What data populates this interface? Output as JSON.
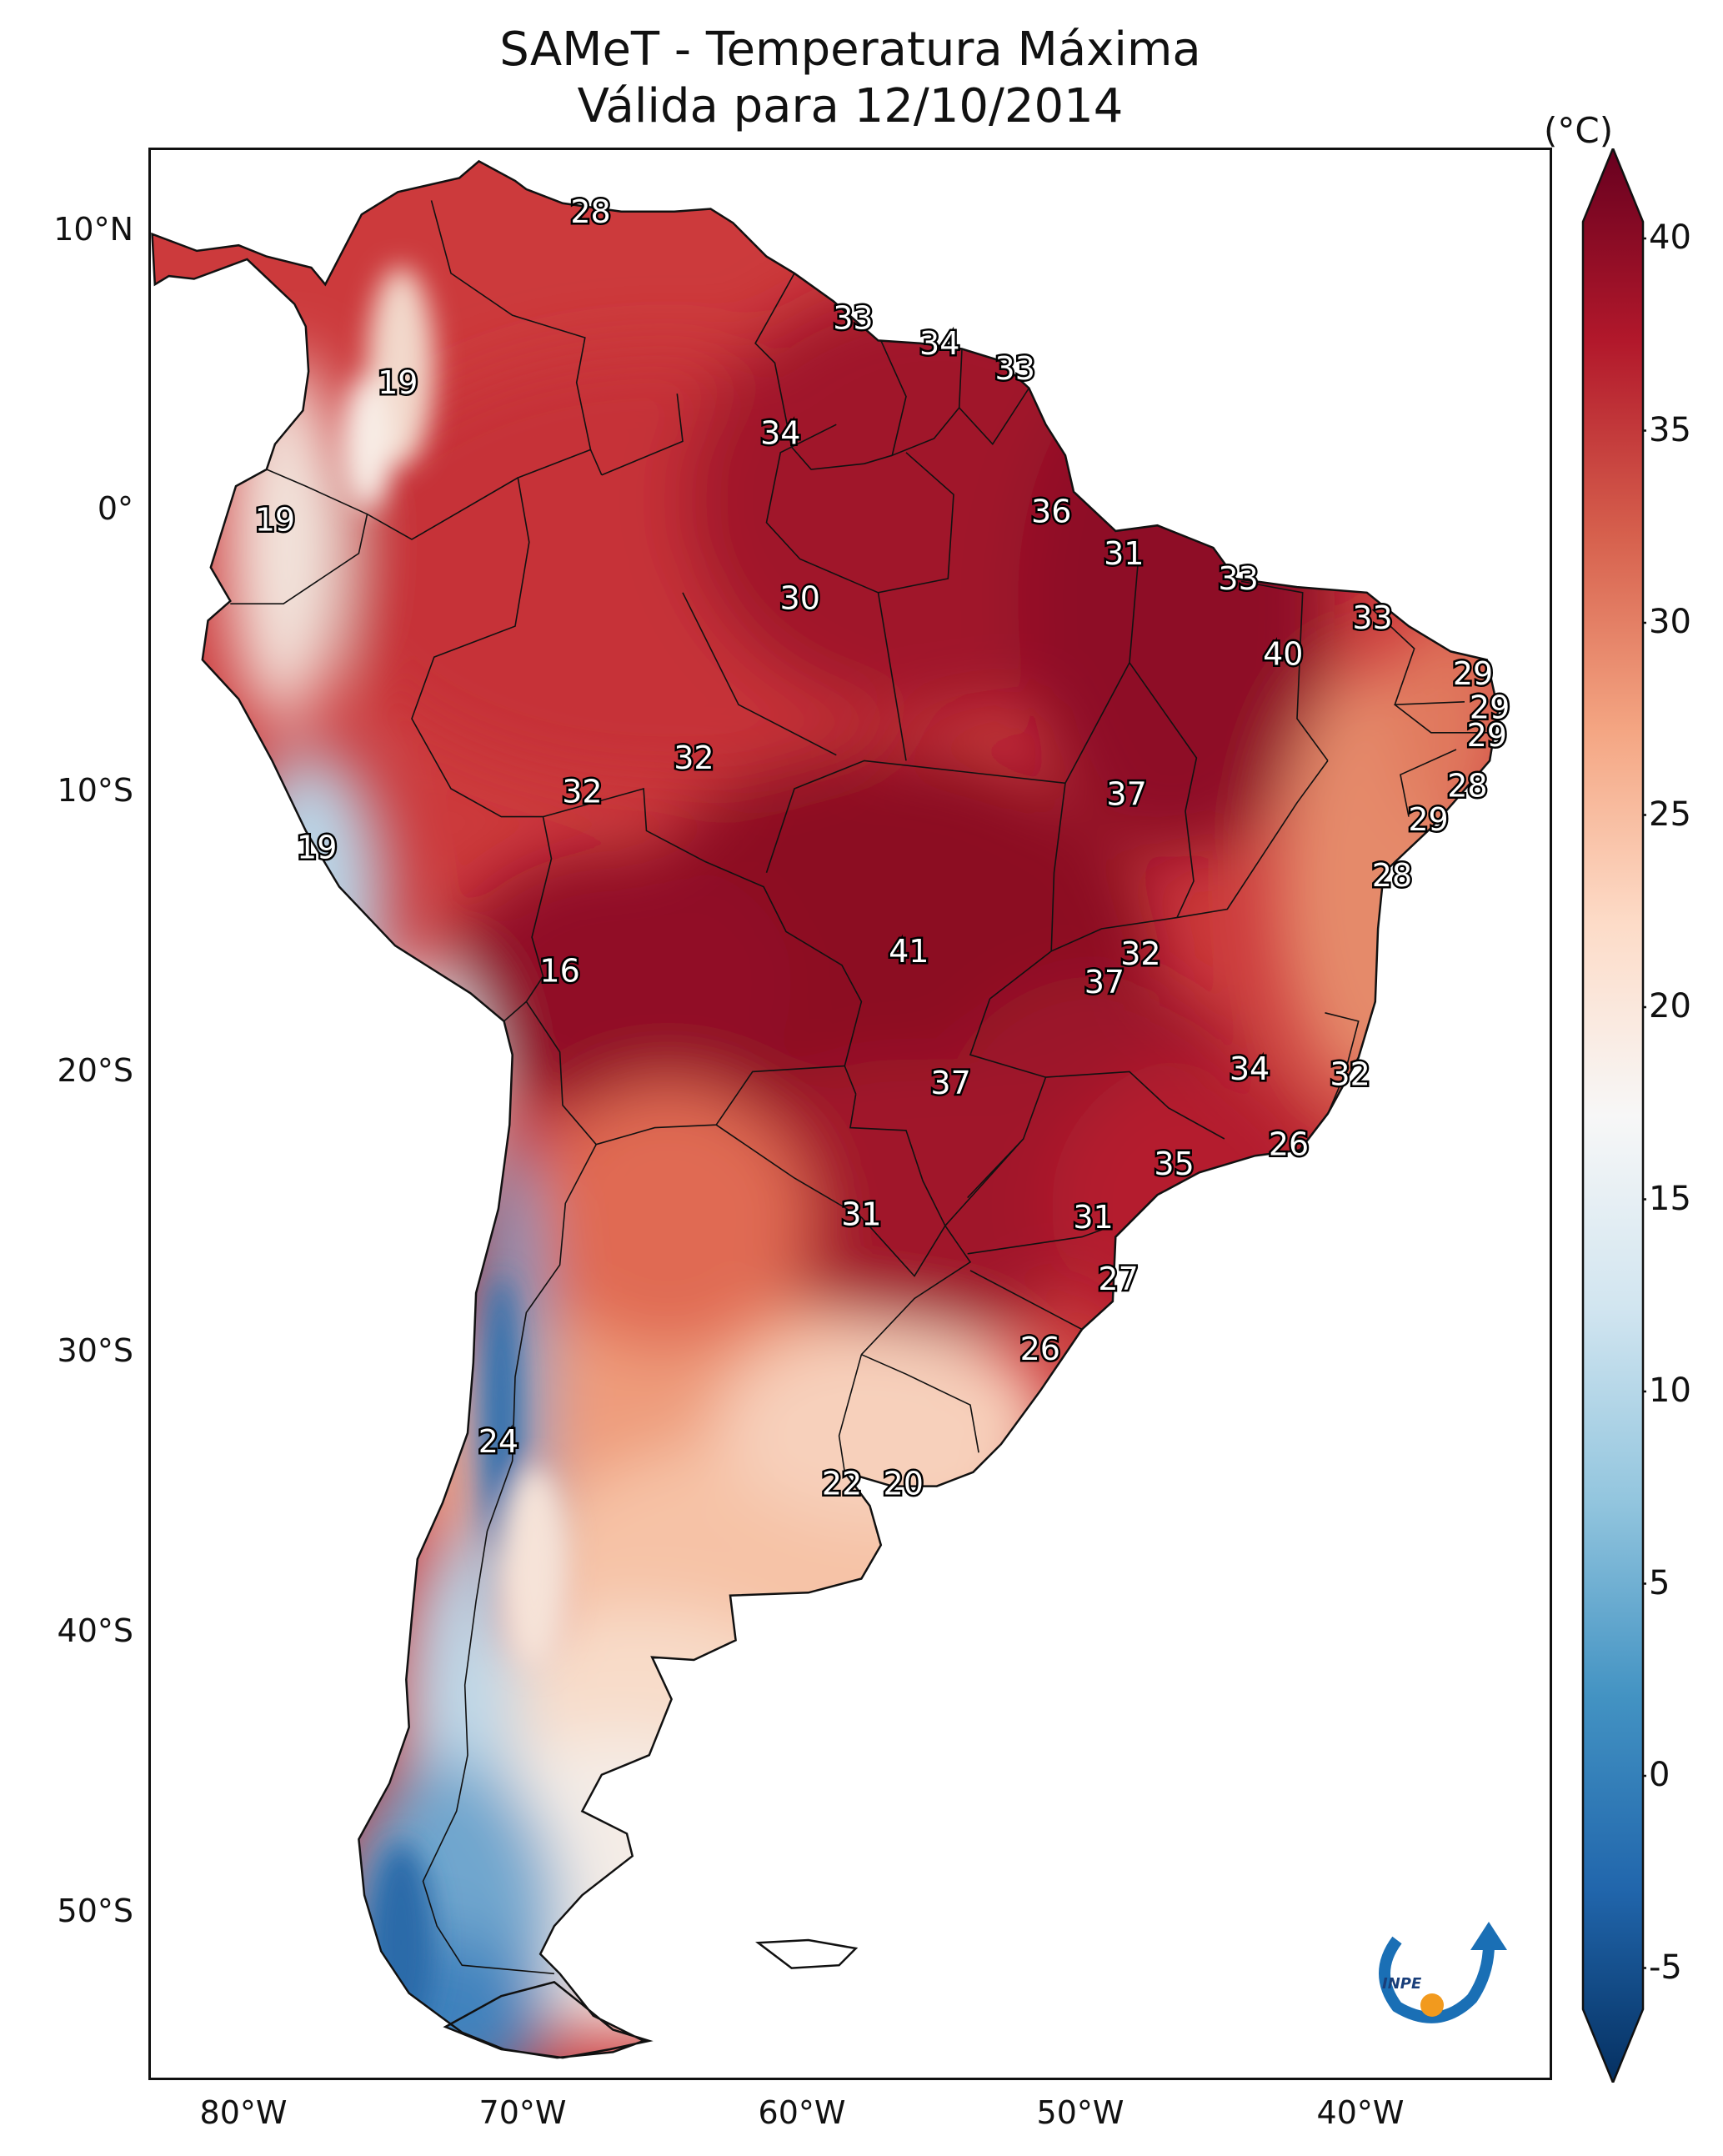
{
  "title_line1": "SAMeT - Temperatura Máxima",
  "title_line2": "Válida para 12/10/2014",
  "colorbar": {
    "unit": "(°C)",
    "ticks": [
      "40",
      "35",
      "30",
      "25",
      "20",
      "15",
      "10",
      "5",
      "0",
      "-5"
    ],
    "colors": [
      "#053061",
      "#2166ac",
      "#4393c3",
      "#92c5de",
      "#d1e5f0",
      "#f7f7f7",
      "#fddbc7",
      "#f4a582",
      "#d6604d",
      "#b2182b",
      "#67001f"
    ]
  },
  "axes": {
    "lat_labels": [
      "10°N",
      "0°",
      "10°S",
      "20°S",
      "30°S",
      "40°S",
      "50°S"
    ],
    "lon_labels": [
      "80°W",
      "70°W",
      "60°W",
      "50°W",
      "40°W"
    ]
  },
  "logo": {
    "text": "INPE"
  },
  "temperature_labels": [
    {
      "value": "28",
      "lon": -67.3,
      "lat": 10.6
    },
    {
      "value": "19",
      "lon": -74.2,
      "lat": 4.5
    },
    {
      "value": "33",
      "lon": -57.9,
      "lat": 6.8
    },
    {
      "value": "34",
      "lon": -54.8,
      "lat": 5.9
    },
    {
      "value": "33",
      "lon": -52.1,
      "lat": 5.0
    },
    {
      "value": "34",
      "lon": -60.5,
      "lat": 2.7
    },
    {
      "value": "19",
      "lon": -78.6,
      "lat": -0.4
    },
    {
      "value": "36",
      "lon": -50.8,
      "lat": -0.1
    },
    {
      "value": "31",
      "lon": -48.2,
      "lat": -1.6
    },
    {
      "value": "33",
      "lon": -44.1,
      "lat": -2.5
    },
    {
      "value": "30",
      "lon": -59.8,
      "lat": -3.2
    },
    {
      "value": "33",
      "lon": -39.3,
      "lat": -3.9
    },
    {
      "value": "40",
      "lon": -42.5,
      "lat": -5.2
    },
    {
      "value": "29",
      "lon": -35.7,
      "lat": -5.9
    },
    {
      "value": "29",
      "lon": -35.1,
      "lat": -7.1
    },
    {
      "value": "29",
      "lon": -35.2,
      "lat": -8.1
    },
    {
      "value": "32",
      "lon": -63.6,
      "lat": -8.9
    },
    {
      "value": "32",
      "lon": -67.6,
      "lat": -10.1
    },
    {
      "value": "37",
      "lon": -48.1,
      "lat": -10.2
    },
    {
      "value": "28",
      "lon": -35.9,
      "lat": -9.9
    },
    {
      "value": "29",
      "lon": -37.3,
      "lat": -11.1
    },
    {
      "value": "19",
      "lon": -77.1,
      "lat": -12.1
    },
    {
      "value": "28",
      "lon": -38.6,
      "lat": -13.1
    },
    {
      "value": "41",
      "lon": -55.9,
      "lat": -15.8
    },
    {
      "value": "32",
      "lon": -47.6,
      "lat": -15.9
    },
    {
      "value": "37",
      "lon": -48.9,
      "lat": -16.9
    },
    {
      "value": "16",
      "lon": -68.4,
      "lat": -16.5
    },
    {
      "value": "37",
      "lon": -54.4,
      "lat": -20.5
    },
    {
      "value": "34",
      "lon": -43.7,
      "lat": -20.0
    },
    {
      "value": "32",
      "lon": -40.1,
      "lat": -20.2
    },
    {
      "value": "26",
      "lon": -42.3,
      "lat": -22.7
    },
    {
      "value": "35",
      "lon": -46.4,
      "lat": -23.4
    },
    {
      "value": "31",
      "lon": -57.6,
      "lat": -25.2
    },
    {
      "value": "31",
      "lon": -49.3,
      "lat": -25.3
    },
    {
      "value": "27",
      "lon": -48.4,
      "lat": -27.5
    },
    {
      "value": "26",
      "lon": -51.2,
      "lat": -30.0
    },
    {
      "value": "24",
      "lon": -70.6,
      "lat": -33.3
    },
    {
      "value": "22",
      "lon": -58.3,
      "lat": -34.8
    },
    {
      "value": "20",
      "lon": -56.1,
      "lat": -34.8
    }
  ]
}
